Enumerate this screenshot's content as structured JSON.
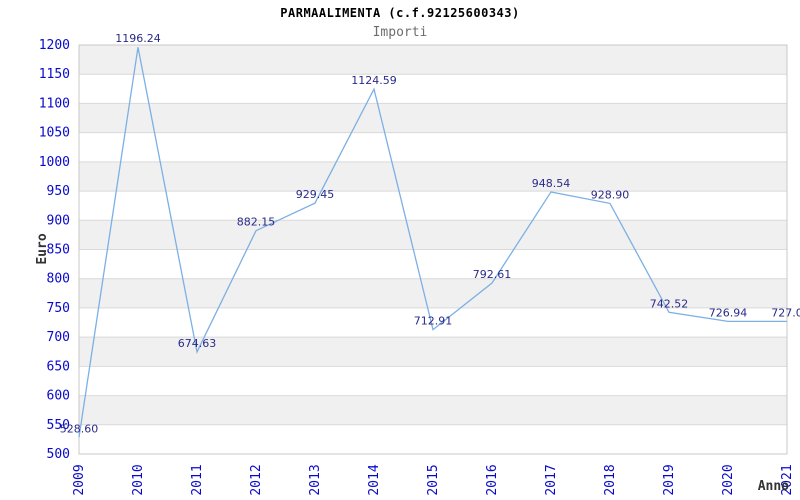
{
  "title": "PARMAALIMENTA (c.f.92125600343)",
  "subtitle": "Importi",
  "chart_data": {
    "type": "line",
    "categories": [
      "2009",
      "2010",
      "2011",
      "2012",
      "2013",
      "2014",
      "2015",
      "2016",
      "2017",
      "2018",
      "2019",
      "2020",
      "2021"
    ],
    "values": [
      528.6,
      1196.24,
      674.63,
      882.15,
      929.45,
      1124.59,
      712.91,
      792.61,
      948.54,
      928.9,
      742.52,
      726.94,
      727.0
    ],
    "point_labels": [
      "528.60",
      "1196.24",
      "674.63",
      "882.15",
      "929.45",
      "1124.59",
      "712.91",
      "792.61",
      "948.54",
      "928.90",
      "742.52",
      "726.94",
      "727.0"
    ],
    "xlabel": "Anno",
    "ylabel": "Euro",
    "ylim": [
      500,
      1200
    ],
    "ytick_step": 50,
    "grid": true,
    "legend": "none",
    "colors": {
      "line": "#7cb0e4",
      "tick_label": "#0909cc",
      "point_label": "#2a2a8a",
      "band": "#f0f0f0",
      "gridline": "#d9d9d9",
      "plot_border": "#c9c9c9",
      "axis_title": "#333333"
    }
  }
}
